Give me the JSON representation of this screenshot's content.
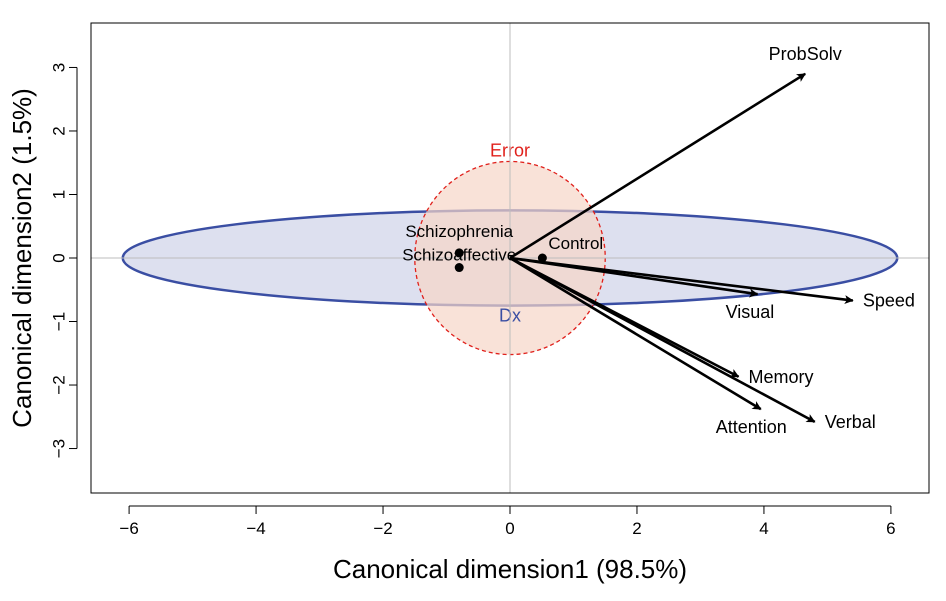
{
  "chart_data": {
    "type": "scatter",
    "subtype": "canonical-discriminant-biplot",
    "xlabel": "Canonical dimension1 (98.5%)",
    "ylabel": "Canonical dimension2 (1.5%)",
    "xlim": [
      -6.6,
      6.6
    ],
    "ylim": [
      -3.7,
      3.7
    ],
    "xticks": [
      -6,
      -4,
      -2,
      0,
      2,
      4,
      6
    ],
    "yticks": [
      -3,
      -2,
      -1,
      0,
      1,
      2,
      3
    ],
    "xtick_labels": [
      "−6",
      "−4",
      "−2",
      "0",
      "2",
      "4",
      "6"
    ],
    "ytick_labels": [
      "−3",
      "−2",
      "−1",
      "0",
      "1",
      "2",
      "3"
    ],
    "reference_lines": {
      "x": 0,
      "y": 0,
      "color": "#bdbdbd"
    },
    "group_means": [
      {
        "name": "Control",
        "x": 0.51,
        "y": 0.0
      },
      {
        "name": "Schizophrenia",
        "x": -0.8,
        "y": 0.08
      },
      {
        "name": "Schizoaffective",
        "x": -0.8,
        "y": -0.15
      }
    ],
    "ellipses": [
      {
        "name": "Dx",
        "cx": 0,
        "cy": 0,
        "rx": 6.1,
        "ry": 0.75,
        "stroke": "#3a4ea3",
        "fill": "#dde0ef"
      },
      {
        "name": "Error",
        "cx": 0,
        "cy": 0,
        "rx": 1.5,
        "ry": 1.52,
        "stroke": "#e0201b",
        "fill": "#f7d5c8",
        "dashed": true
      }
    ],
    "vectors": [
      {
        "name": "ProbSolv",
        "x": 4.65,
        "y": 2.9
      },
      {
        "name": "Speed",
        "x": 5.4,
        "y": -0.67
      },
      {
        "name": "Visual",
        "x": 3.9,
        "y": -0.57
      },
      {
        "name": "Memory",
        "x": 3.6,
        "y": -1.87
      },
      {
        "name": "Verbal",
        "x": 4.8,
        "y": -2.58
      },
      {
        "name": "Attention",
        "x": 3.95,
        "y": -2.38
      }
    ],
    "grid": false,
    "legend": "none"
  }
}
